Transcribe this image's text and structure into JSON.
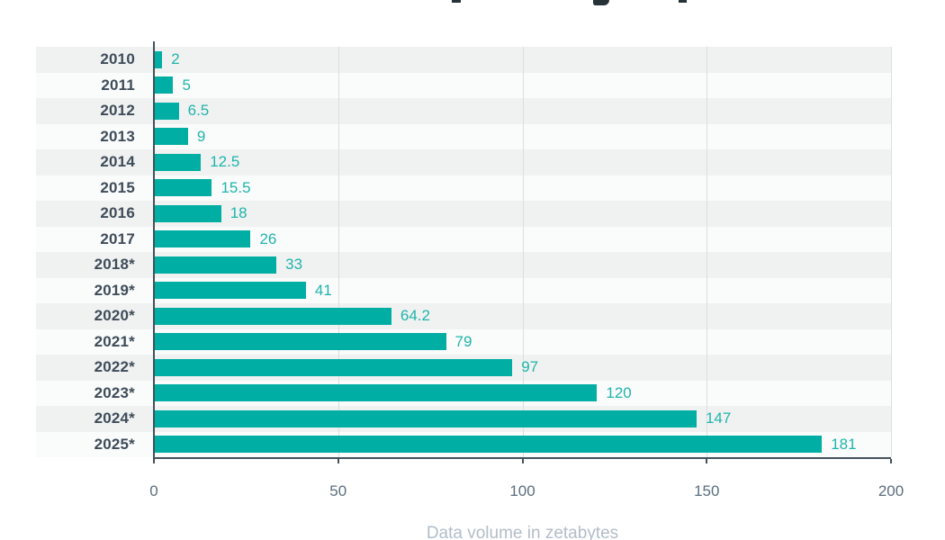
{
  "chart_data": {
    "type": "bar",
    "orientation": "horizontal",
    "title_cropped_out_of_view": true,
    "categories": [
      "2010",
      "2011",
      "2012",
      "2013",
      "2014",
      "2015",
      "2016",
      "2017",
      "2018*",
      "2019*",
      "2020*",
      "2021*",
      "2022*",
      "2023*",
      "2024*",
      "2025*"
    ],
    "values": [
      2,
      5,
      6.5,
      9,
      12.5,
      15.5,
      18,
      26,
      33,
      41,
      64.2,
      79,
      97,
      120,
      147,
      181
    ],
    "value_labels": [
      "2",
      "5",
      "6.5",
      "9",
      "12.5",
      "15.5",
      "18",
      "26",
      "33",
      "41",
      "64.2",
      "79",
      "97",
      "120",
      "147",
      "181"
    ],
    "xlabel": "Data volume in zetabytes",
    "ylabel": "",
    "xlim": [
      0,
      200
    ],
    "x_ticks": [
      0,
      50,
      100,
      150,
      200
    ],
    "x_tick_labels": [
      "0",
      "50",
      "100",
      "150",
      "200"
    ],
    "grid": true,
    "legend": "none",
    "row_striping": "alternating, first row shaded"
  },
  "colors": {
    "bar": "#00AEA4",
    "value_label": "#1FB5AB",
    "category_label": "#3E4C59",
    "tick_label": "#5C6E7E",
    "axis_line": "#43525C",
    "gridline": "#DBDFDF",
    "band_dark": "#F0F1F1",
    "band_light": "#FAFBFB",
    "x_axis_title": "#B2BEC8",
    "title_fragment": "#263238",
    "background": "#FFFFFF"
  }
}
